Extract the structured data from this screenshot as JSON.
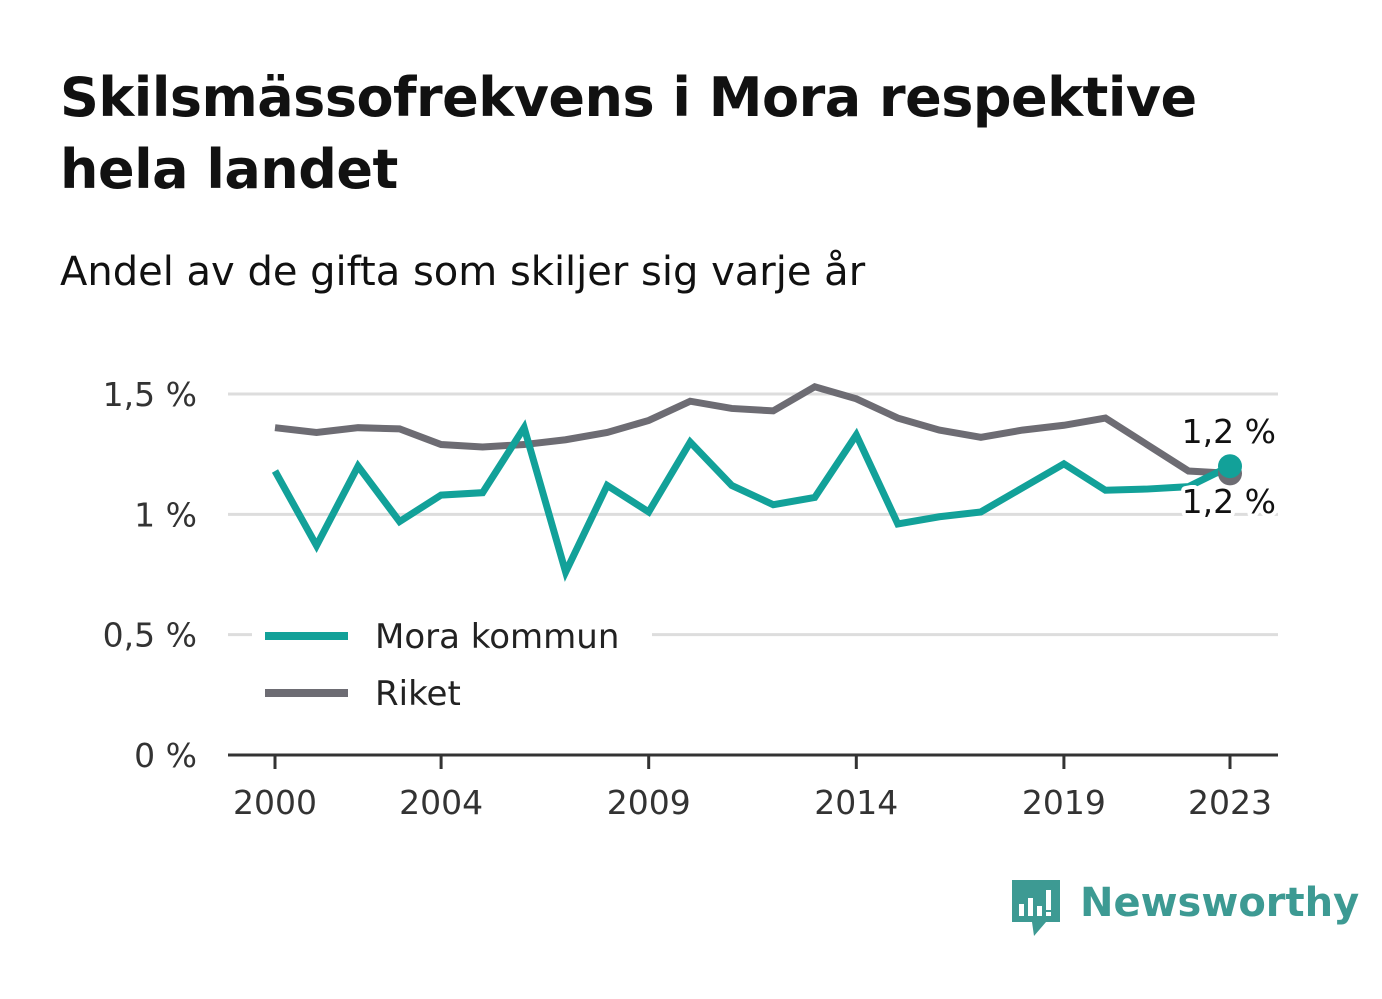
{
  "title": "Skilsmässofrekvens i Mora respektive hela landet",
  "subtitle": "Andel av de gifta som skiljer sig varje år",
  "brand": {
    "name": "Newsworthy",
    "color": "#3d9a93"
  },
  "chart_data": {
    "type": "line",
    "title": "Skilsmässofrekvens i Mora respektive hela landet",
    "subtitle": "Andel av de gifta som skiljer sig varje år",
    "xlabel": "",
    "ylabel": "",
    "ylim": [
      0,
      1.5
    ],
    "grid": true,
    "legend_position": "bottom-left",
    "x_ticks": [
      "2000",
      "2004",
      "2009",
      "2014",
      "2019",
      "2023"
    ],
    "y_ticks": [
      "0 %",
      "0,5 %",
      "1 %",
      "1,5 %"
    ],
    "x": [
      2000,
      2001,
      2002,
      2003,
      2004,
      2005,
      2006,
      2007,
      2008,
      2009,
      2010,
      2011,
      2012,
      2013,
      2014,
      2015,
      2016,
      2017,
      2018,
      2019,
      2020,
      2021,
      2022,
      2023
    ],
    "series": [
      {
        "name": "Mora kommun",
        "color": "#12a199",
        "values": [
          1.18,
          0.87,
          1.2,
          0.97,
          1.08,
          1.09,
          1.36,
          0.76,
          1.12,
          1.01,
          1.3,
          1.12,
          1.04,
          1.07,
          1.33,
          0.96,
          0.99,
          1.01,
          1.11,
          1.21,
          1.1,
          1.105,
          1.115,
          1.2
        ],
        "end_label": "1,2 %"
      },
      {
        "name": "Riket",
        "color": "#6d6c73",
        "values": [
          1.36,
          1.34,
          1.36,
          1.355,
          1.29,
          1.28,
          1.29,
          1.31,
          1.34,
          1.39,
          1.47,
          1.44,
          1.43,
          1.53,
          1.48,
          1.4,
          1.35,
          1.32,
          1.35,
          1.37,
          1.4,
          1.29,
          1.18,
          1.17
        ],
        "end_label": "1,2 %"
      }
    ]
  }
}
